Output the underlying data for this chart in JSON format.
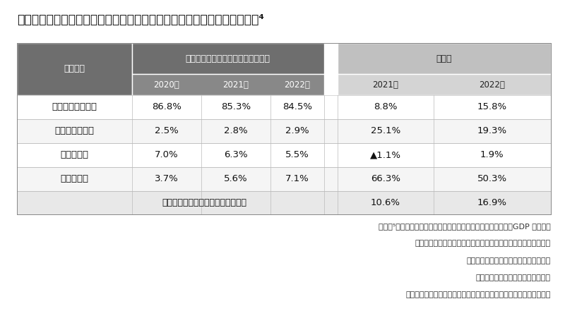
{
  "title": "図表２　キャッシュレス決済手段別のキャッシュレス全体額に占める割合⁴",
  "title_fontsize": 12.5,
  "bg_color": "#ffffff",
  "col_header_1": "決済手段",
  "col_header_group1": "キャッシュレス全体額に占める割合",
  "col_header_group2": "増減率",
  "sub_headers": [
    "2020年",
    "2021年",
    "2022年",
    "2021年",
    "2022年"
  ],
  "rows": [
    {
      "label": "クレジットカード",
      "vals": [
        "86.8%",
        "85.3%",
        "84.5%",
        "8.8%",
        "15.8%"
      ]
    },
    {
      "label": "デビットカード",
      "vals": [
        "2.5%",
        "2.8%",
        "2.9%",
        "25.1%",
        "19.3%"
      ]
    },
    {
      "label": "電子マネー",
      "vals": [
        "7.0%",
        "6.3%",
        "5.5%",
        "▲1.1%",
        "1.9%"
      ]
    },
    {
      "label": "コード決済",
      "vals": [
        "3.7%",
        "5.6%",
        "7.1%",
        "66.3%",
        "50.3%"
      ]
    }
  ],
  "footer_row_label": "キャッシュレス全体の金額の増減率",
  "footer_row_vals": [
    "10.6%",
    "16.9%"
  ],
  "footnotes": [
    "（出典⁵）民間最終消費支出（名目）：内閣府「国民経済計算（GDP 統計）」",
    "クレジットカード：日本クレジット協会「クレジット関連統計」",
    "デビットカード：日本銀行「決済動向」",
    "電子マネー：日本銀行「決済動向」",
    "コード決済：キャッシュレス推進協議会「コード決済利用動向調査」"
  ],
  "footnote_fontsize": 8.0,
  "cell_fontsize": 9.5,
  "header_fontsize": 9.0,
  "header_dark": "#6e6e6e",
  "header_mid": "#888888",
  "header_light": "#c0c0c0",
  "row_colors": [
    "#ffffff",
    "#f5f5f5"
  ],
  "footer_color": "#e8e8e8",
  "border_color": "#bbbbbb"
}
